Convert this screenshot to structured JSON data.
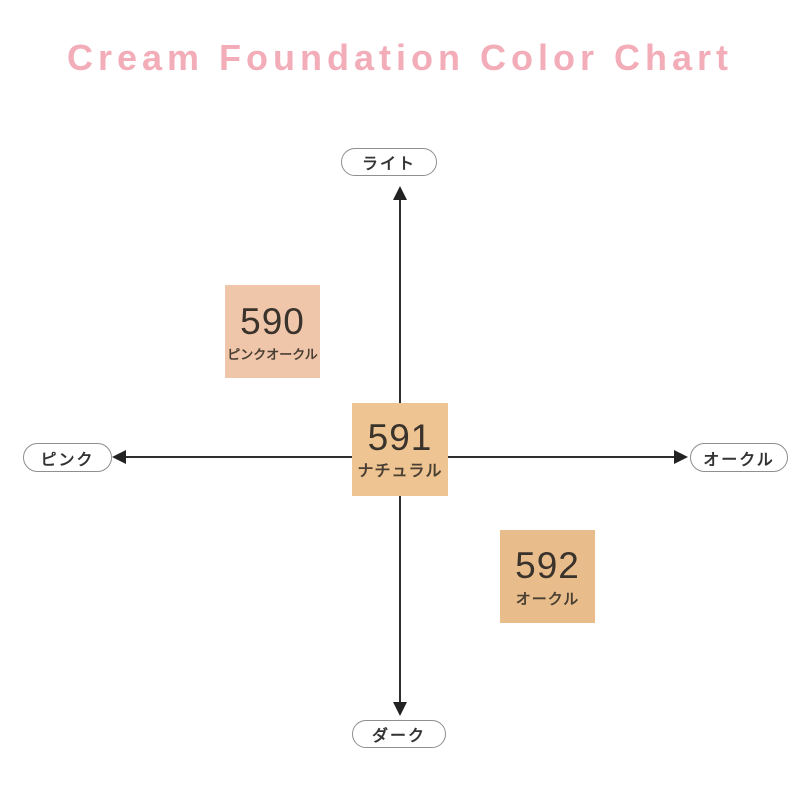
{
  "title": "Cream Foundation Color Chart",
  "title_color": "#f2adb9",
  "axis": {
    "top_label": "ライト",
    "bottom_label": "ダーク",
    "left_label": "ピンク",
    "right_label": "オークル",
    "line_color": "#2e2e2e",
    "pill_border_color": "#8f8f8f"
  },
  "swatches": [
    {
      "number": "590",
      "label": "ピンクオークル",
      "color": "#f0c6ab",
      "position": "upper-left (light / pink side)"
    },
    {
      "number": "591",
      "label": "ナチュラル",
      "color": "#eec492",
      "position": "center (natural)"
    },
    {
      "number": "592",
      "label": "オークル",
      "color": "#e9bd8b",
      "position": "lower-right (dark / ochre side)"
    }
  ]
}
